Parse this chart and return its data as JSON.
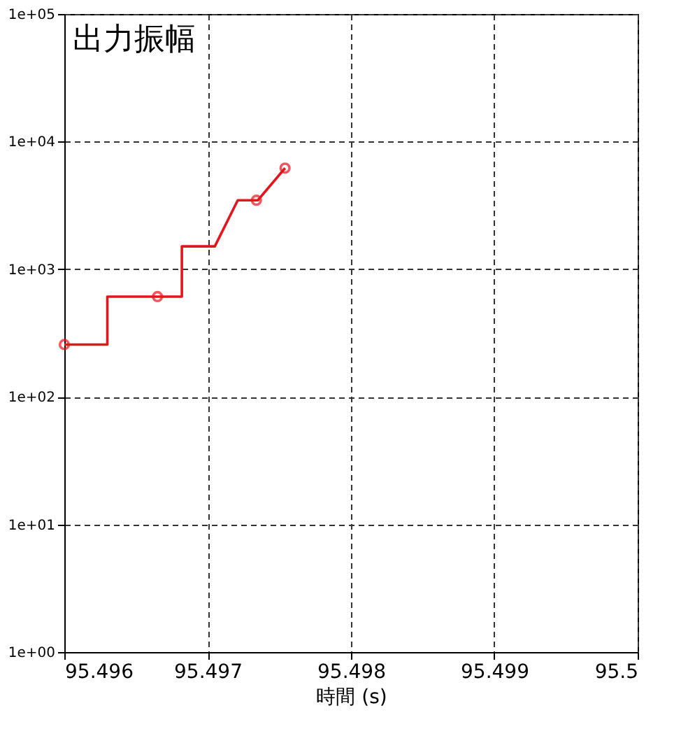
{
  "chart_data": {
    "type": "line",
    "title": "出力振幅",
    "xlabel": "時間 (s)",
    "xlim": [
      95.496,
      95.5
    ],
    "xticks": [
      {
        "value": 95.496,
        "label": "95.496"
      },
      {
        "value": 95.497,
        "label": "95.497"
      },
      {
        "value": 95.498,
        "label": "95.498"
      },
      {
        "value": 95.499,
        "label": "95.499"
      },
      {
        "value": 95.5,
        "label": "95.5"
      }
    ],
    "ylim": [
      1,
      100000
    ],
    "log": true,
    "yticks": [
      {
        "value": 1,
        "label": "1e+00"
      },
      {
        "value": 10,
        "label": "1e+01"
      },
      {
        "value": 100,
        "label": "1e+02"
      },
      {
        "value": 1000,
        "label": "1e+03"
      },
      {
        "value": 10000,
        "label": "1e+04"
      },
      {
        "value": 100000,
        "label": "1e+05"
      }
    ],
    "grid": true,
    "series": [
      {
        "color": "#e8141c",
        "marker": "none",
        "x": [
          95.496,
          95.4963,
          95.4963,
          95.49682,
          95.49682,
          95.49705,
          95.49721,
          95.49735,
          95.49754
        ],
        "values": [
          257,
          257,
          610,
          610,
          1510,
          1510,
          3470,
          3470,
          6200
        ]
      },
      {
        "type": "scatter",
        "color": "#e8141c",
        "marker": "circle",
        "x": [
          95.496,
          95.49665,
          95.49734,
          95.49754
        ],
        "values": [
          257,
          610,
          3470,
          6200
        ]
      }
    ]
  }
}
